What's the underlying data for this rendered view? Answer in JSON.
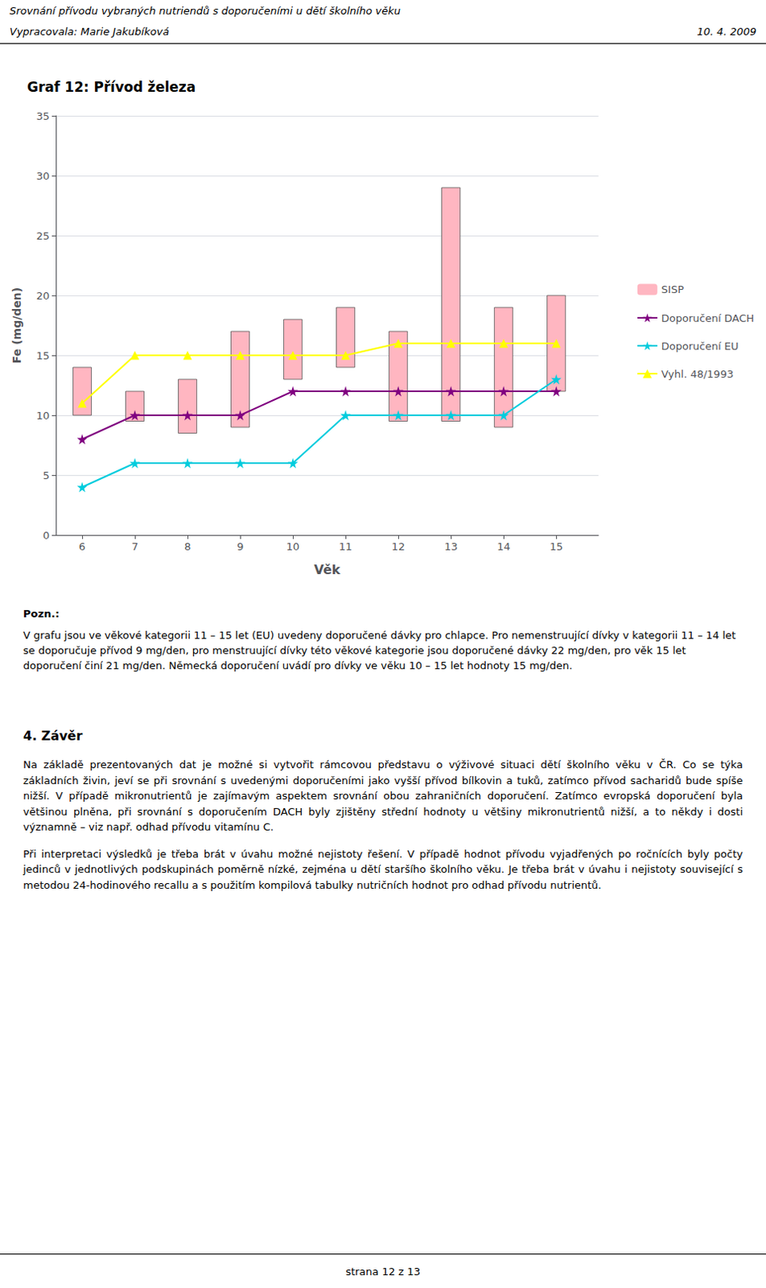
{
  "header": [
    "Srovnání přívodu vybraných nutriendů s doporučeními u dětí školního věku",
    "Vypracovala: Marie Jakubíková"
  ],
  "header_date": "10. 4. 2009",
  "notes_title": "Pozn.:",
  "notes": "V grafu jsou ve věkové kategorii 11 – 15 let (EU) uvedeny doporučené dávky pro chlapce. Pro nemenstruující dívky v kategorii 11 – 14 let se doporučuje přívod 9 mg/den, pro menstruující dívky této věkové kategorie jsou doporučené dávky 22 mg/den, pro věk 15 let doporučení činí 21 mg/den. Německá doporučení uvádí pro dívky ve věku 10 – 15 let hodnoty 15 mg/den.",
  "section_title": "4. Závěr",
  "section_paragraphs": [
    "Na základě prezentovaných dat je možné si vytvořit rámcovou představu o výživové situaci dětí školního věku v ČR. Co se týka základních živin, jeví se při srovnání s uvedenými doporučeními jako vyšší přívod bílkovin a tuků, zatímco přívod sacharidů bude spíše nižší. V případě mikronutrientů je zajímavým aspektem srovnání obou zahraničních doporučení. Zatímco evropská doporučení byla většinou plněna, při srovnání s doporučením DACH byly zjištěny střední hodnoty u většiny mikronutrientů nižší, a to někdy i dosti významně – viz např. odhad přívodu vitamínu C.",
    "Při interpretaci výsledků je třeba brát v úvahu  možné nejistoty řešení. V případě hodnot přívodu vyjadřených po ročnících byly počty jedinců v jednotlivých podskupinách poměrně nízké, zejména u dětí staršího školního věku. Je třeba brát v úvahu i nejistoty související s metodou 24-hodinového recallu a s použitím kompilová tabulky nutričních hodnot pro odhad přívodu nutrientů."
  ],
  "footer": "strana 12 z 13",
  "chart_data": {
    "type": "bar",
    "title": "Graf 12: Přívod železa",
    "xlabel": "Věk",
    "ylabel": "Fe (mg/den)",
    "x": [
      6,
      7,
      8,
      9,
      10,
      11,
      12,
      13,
      14,
      15
    ],
    "xlim": [
      5.5,
      15.8
    ],
    "xticks": [
      6,
      7,
      8,
      9,
      10,
      11,
      12,
      13,
      14,
      15
    ],
    "ylim": [
      0,
      35
    ],
    "yticks": [
      0,
      5,
      10,
      15,
      20,
      25,
      30,
      35
    ],
    "grid": true,
    "legend": "right",
    "series": [
      {
        "name": "SISP",
        "type": "bar",
        "color": "#FFB6C1",
        "values": [
          [
            10.0,
            14.0
          ],
          [
            9.5,
            12.0
          ],
          [
            8.5,
            13.0
          ],
          [
            9.0,
            17.0
          ],
          [
            13.0,
            18.0
          ],
          [
            14.0,
            19.0
          ],
          [
            9.5,
            17.0
          ],
          [
            9.5,
            29.0
          ],
          [
            9.0,
            19.0
          ],
          [
            12.0,
            20.0
          ]
        ]
      },
      {
        "name": "Doporučení DACH",
        "type": "line",
        "color": "#800080",
        "marker": "star",
        "values": [
          8.0,
          10.0,
          10.0,
          10.0,
          12.0,
          12.0,
          12.0,
          12.0,
          12.0,
          12.0
        ]
      },
      {
        "name": "Doporučení EU",
        "type": "line",
        "color": "#00CCDD",
        "marker": "star",
        "values": [
          4.0,
          6.0,
          6.0,
          6.0,
          6.0,
          10.0,
          10.0,
          10.0,
          10.0,
          13.0
        ]
      },
      {
        "name": "Vyhl. 48/1993",
        "type": "line",
        "color": "#FFFF00",
        "marker": "triangle",
        "values": [
          11.0,
          15.0,
          15.0,
          15.0,
          15.0,
          15.0,
          16.0,
          16.0,
          16.0,
          16.0
        ]
      }
    ]
  }
}
